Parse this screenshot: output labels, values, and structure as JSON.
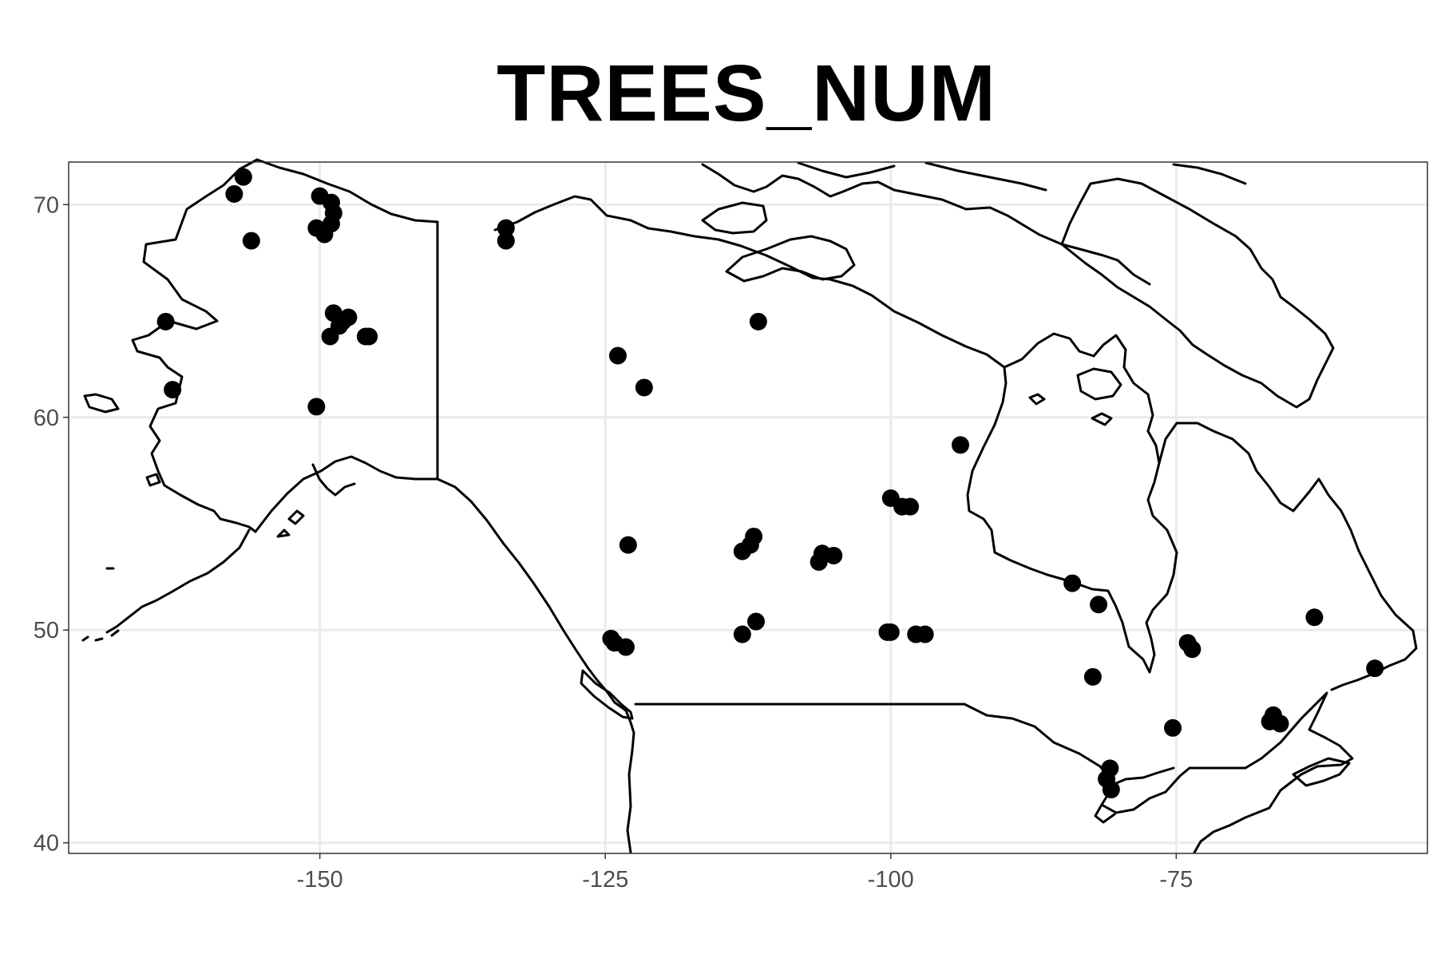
{
  "title": "TREES_NUM",
  "map": {
    "projection": "equirectangular",
    "lon_range": [
      -172,
      -53
    ],
    "lat_range": [
      39.5,
      72
    ],
    "x_ticks": [
      -150,
      -125,
      -100,
      -75
    ],
    "x_tick_labels": [
      "-150",
      "-125",
      "-100",
      "-75"
    ],
    "y_ticks": [
      40,
      50,
      60,
      70
    ],
    "y_tick_labels": [
      "40",
      "50",
      "60",
      "70"
    ],
    "grid": true,
    "theme": "bw",
    "colors": {
      "background": "#ffffff",
      "panel_border": "#333333",
      "grid": "#ebebeb",
      "coastline": "#000000",
      "points": "#000000",
      "tick_text": "#4d4d4d"
    },
    "points": [
      [
        -156.7,
        71.3
      ],
      [
        -157.5,
        70.5
      ],
      [
        -156.0,
        68.3
      ],
      [
        -150.0,
        70.4
      ],
      [
        -149.0,
        70.1
      ],
      [
        -148.8,
        69.6
      ],
      [
        -149.0,
        69.1
      ],
      [
        -150.3,
        68.9
      ],
      [
        -149.6,
        68.6
      ],
      [
        -148.8,
        64.9
      ],
      [
        -147.5,
        64.7
      ],
      [
        -148.0,
        64.5
      ],
      [
        -148.3,
        64.3
      ],
      [
        -149.1,
        63.8
      ],
      [
        -146.0,
        63.8
      ],
      [
        -145.7,
        63.8
      ],
      [
        -163.5,
        64.5
      ],
      [
        -162.9,
        61.3
      ],
      [
        -150.3,
        60.5
      ],
      [
        -133.7,
        68.9
      ],
      [
        -133.7,
        68.3
      ],
      [
        -111.6,
        64.5
      ],
      [
        -123.9,
        62.9
      ],
      [
        -121.6,
        61.4
      ],
      [
        -123.0,
        54.0
      ],
      [
        -113.0,
        53.7
      ],
      [
        -112.3,
        54.0
      ],
      [
        -112.0,
        54.4
      ],
      [
        -106.0,
        53.6
      ],
      [
        -106.3,
        53.2
      ],
      [
        -105.0,
        53.5
      ],
      [
        -100.0,
        56.2
      ],
      [
        -99.0,
        55.8
      ],
      [
        -98.3,
        55.8
      ],
      [
        -100.3,
        49.9
      ],
      [
        -100.0,
        49.9
      ],
      [
        -97.8,
        49.8
      ],
      [
        -97.0,
        49.8
      ],
      [
        -111.8,
        50.4
      ],
      [
        -113.0,
        49.8
      ],
      [
        -124.5,
        49.6
      ],
      [
        -124.2,
        49.4
      ],
      [
        -123.2,
        49.2
      ],
      [
        -93.9,
        58.7
      ],
      [
        -84.1,
        52.2
      ],
      [
        -81.8,
        51.2
      ],
      [
        -82.3,
        47.8
      ],
      [
        -80.8,
        43.5
      ],
      [
        -81.1,
        43.0
      ],
      [
        -80.7,
        42.5
      ],
      [
        -75.3,
        45.4
      ],
      [
        -74.0,
        49.4
      ],
      [
        -73.6,
        49.1
      ],
      [
        -66.5,
        46.0
      ],
      [
        -66.8,
        45.7
      ],
      [
        -65.9,
        45.6
      ],
      [
        -62.9,
        50.6
      ],
      [
        -57.6,
        48.2
      ]
    ]
  }
}
